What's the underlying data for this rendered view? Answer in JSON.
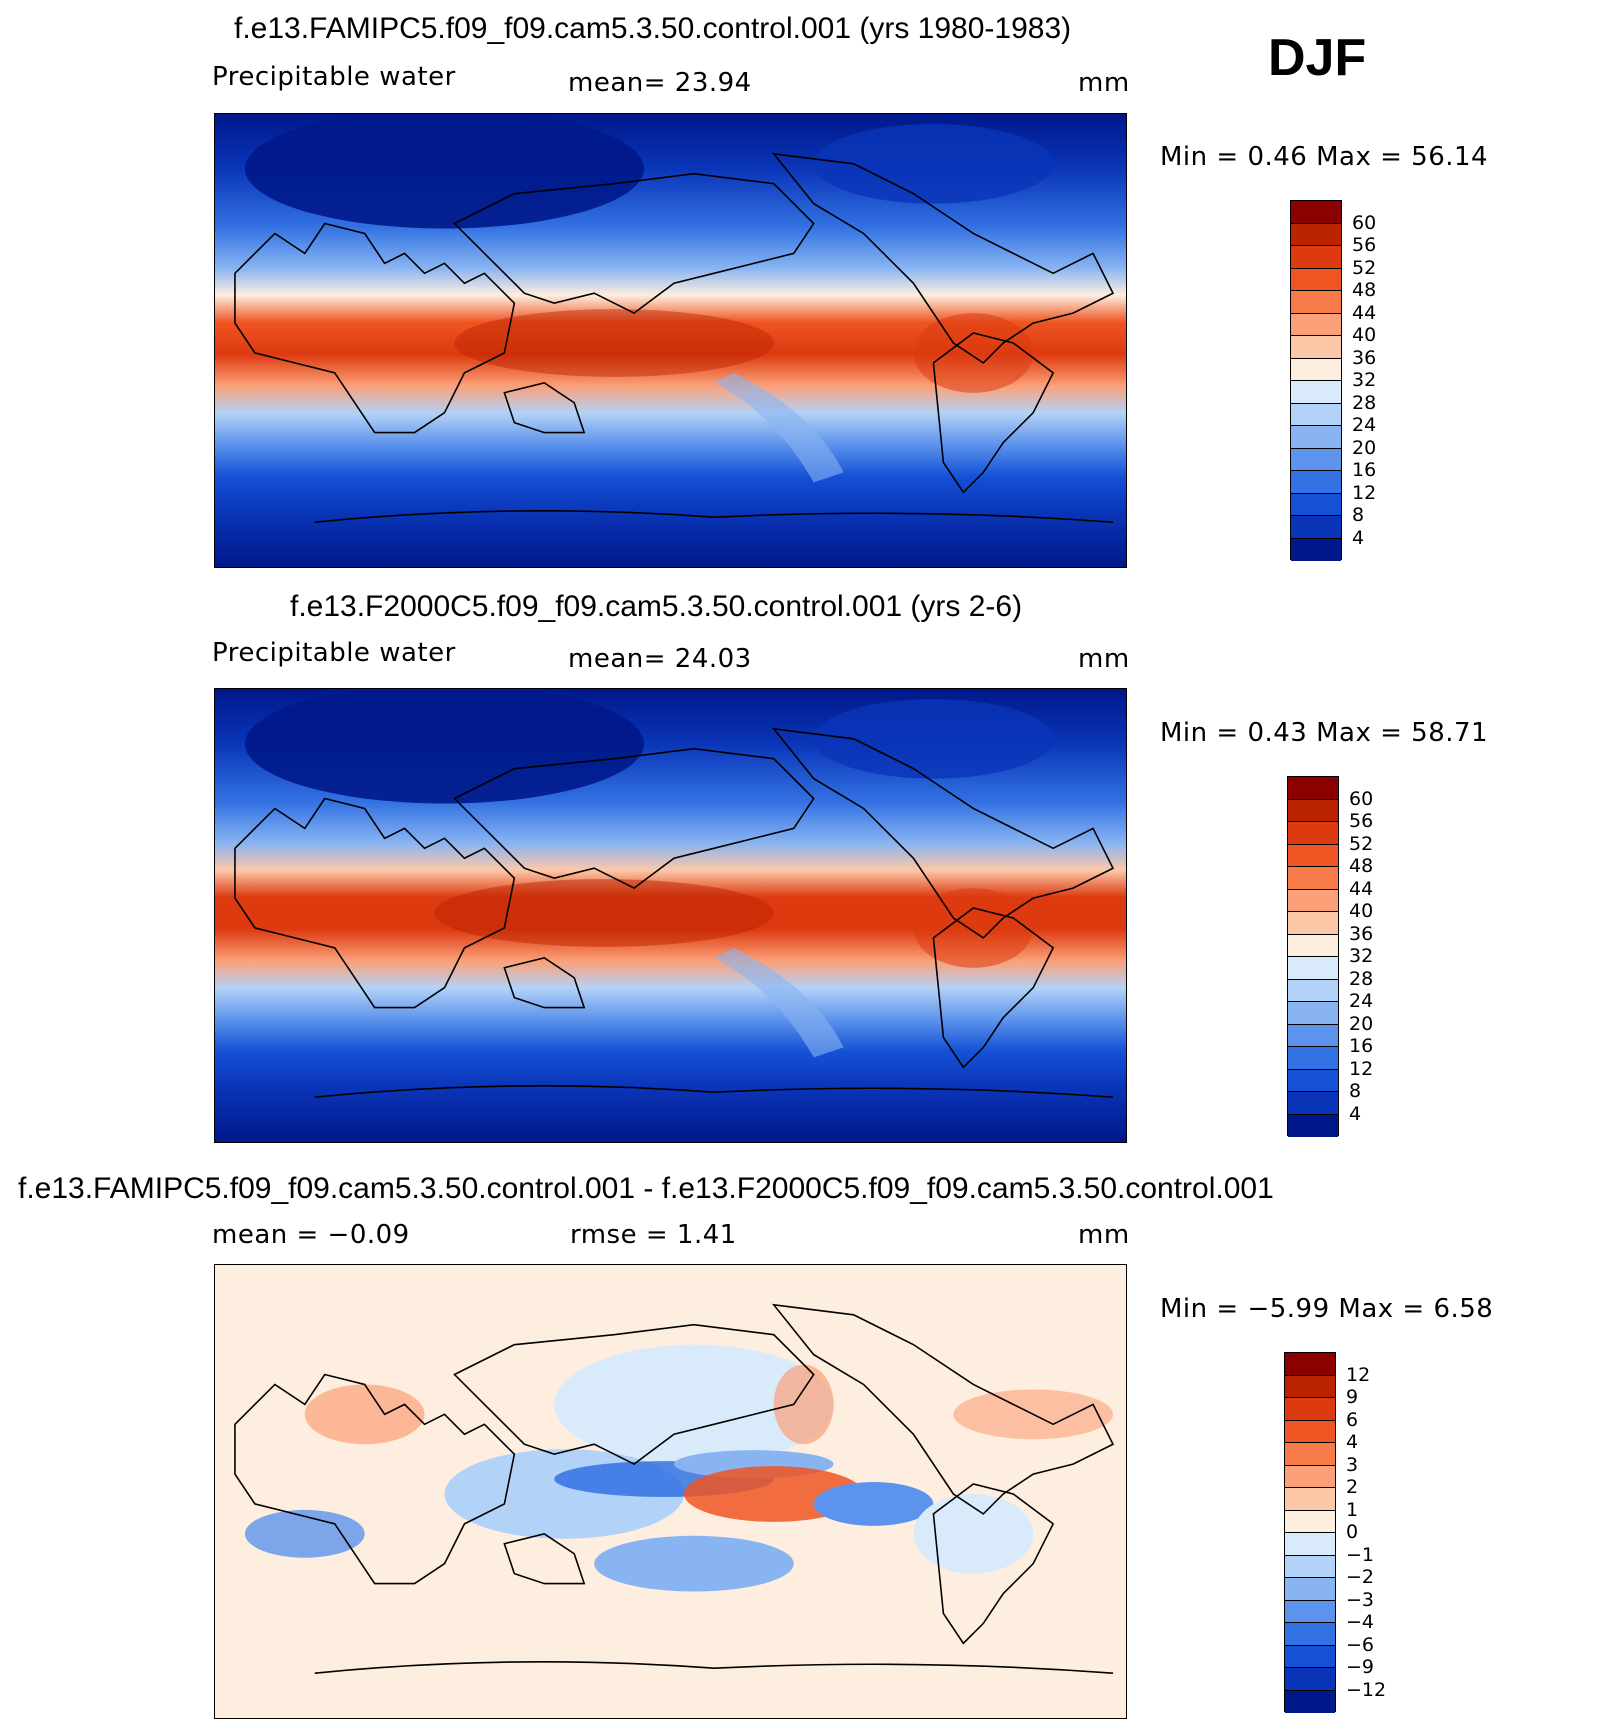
{
  "season": "DJF",
  "panels": [
    {
      "title": "f.e13.FAMIPC5.f09_f09.cam5.3.50.control.001 (yrs 1980-1983)",
      "variable": "Precipitable  water",
      "stat_text": "mean=   23.94",
      "units": "mm",
      "minmax": "Min  =     0.46  Max  =    56.14",
      "colorbar": {
        "labels": [
          "60",
          "56",
          "52",
          "48",
          "44",
          "40",
          "36",
          "32",
          "28",
          "24",
          "20",
          "16",
          "12",
          "8",
          "4"
        ],
        "colors": [
          "#8b0000",
          "#bb2200",
          "#dd3a10",
          "#ee5522",
          "#f77a48",
          "#fba078",
          "#fdc8a8",
          "#fdeee0",
          "#d9eafb",
          "#b3d2f7",
          "#88b4f2",
          "#5c93ec",
          "#3372e3",
          "#1551d6",
          "#0a35b8",
          "#00188a"
        ]
      }
    },
    {
      "title": "f.e13.F2000C5.f09_f09.cam5.3.50.control.001 (yrs 2-6)",
      "variable": "Precipitable  water",
      "stat_text": "mean=   24.03",
      "units": "mm",
      "minmax": "Min  =     0.43  Max  =    58.71",
      "colorbar": {
        "labels": [
          "60",
          "56",
          "52",
          "48",
          "44",
          "40",
          "36",
          "32",
          "28",
          "24",
          "20",
          "16",
          "12",
          "8",
          "4"
        ],
        "colors": [
          "#8b0000",
          "#bb2200",
          "#dd3a10",
          "#ee5522",
          "#f77a48",
          "#fba078",
          "#fdc8a8",
          "#fdeee0",
          "#d9eafb",
          "#b3d2f7",
          "#88b4f2",
          "#5c93ec",
          "#3372e3",
          "#1551d6",
          "#0a35b8",
          "#00188a"
        ]
      }
    },
    {
      "title": "f.e13.FAMIPC5.f09_f09.cam5.3.50.control.001 - f.e13.F2000C5.f09_f09.cam5.3.50.control.001",
      "stat_text": "mean  =    −0.09",
      "stat_text2": "rmse  =     1.41",
      "units": "mm",
      "minmax": "Min  =    −5.99  Max  =     6.58",
      "colorbar": {
        "labels": [
          "12",
          "9",
          "6",
          "4",
          "3",
          "2",
          "1",
          "0",
          "−1",
          "−2",
          "−3",
          "−4",
          "−6",
          "−9",
          "−12"
        ],
        "colors": [
          "#8b0000",
          "#bb2200",
          "#dd3a10",
          "#ee5522",
          "#f77a48",
          "#fba078",
          "#fdc8a8",
          "#fdeee0",
          "#d9eafb",
          "#b3d2f7",
          "#88b4f2",
          "#5c93ec",
          "#3372e3",
          "#1551d6",
          "#0a35b8",
          "#00188a"
        ]
      }
    }
  ]
}
